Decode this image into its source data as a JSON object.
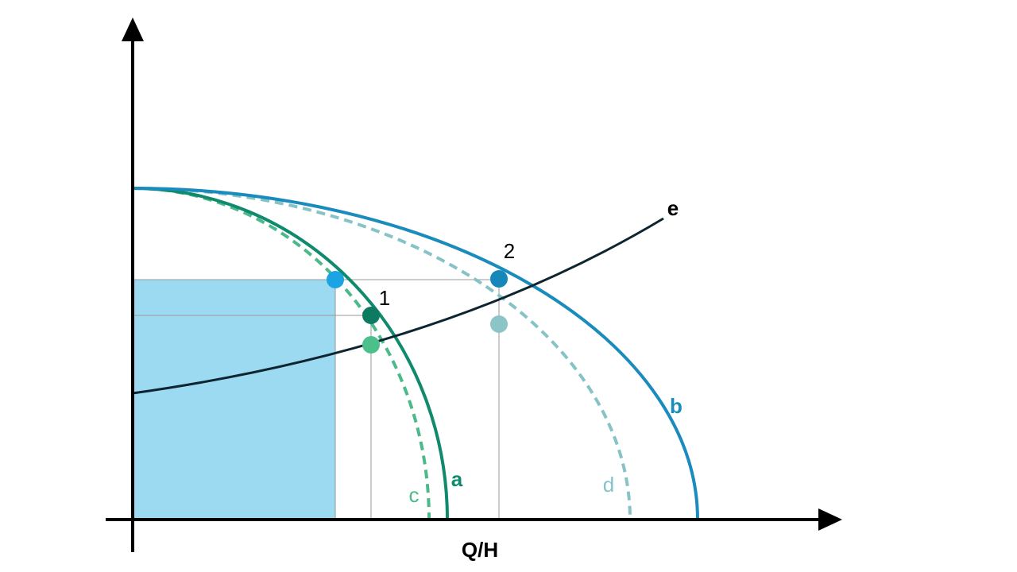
{
  "axis_label": "Q/H",
  "curve_labels": {
    "a": "a",
    "b": "b",
    "c": "c",
    "d": "d",
    "e": "e"
  },
  "point_labels": [
    "1",
    "2"
  ]
}
